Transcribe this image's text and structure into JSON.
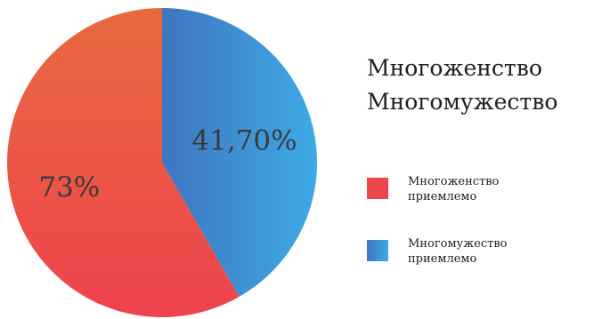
{
  "chart_data": {
    "type": "pie",
    "title_lines": [
      "Многоженство",
      "Многомужество"
    ],
    "slices": [
      {
        "label": "Многоженство приемлемо",
        "display_value": "73%",
        "value": 73,
        "color_start": "#e8693f",
        "color_end": "#ee434d"
      },
      {
        "label": "Многомужество приемлемо",
        "display_value": "41,70%",
        "value": 41.7,
        "color_start": "#3f76c0",
        "color_end": "#3daae6"
      }
    ],
    "legend": {
      "position": "right"
    }
  }
}
